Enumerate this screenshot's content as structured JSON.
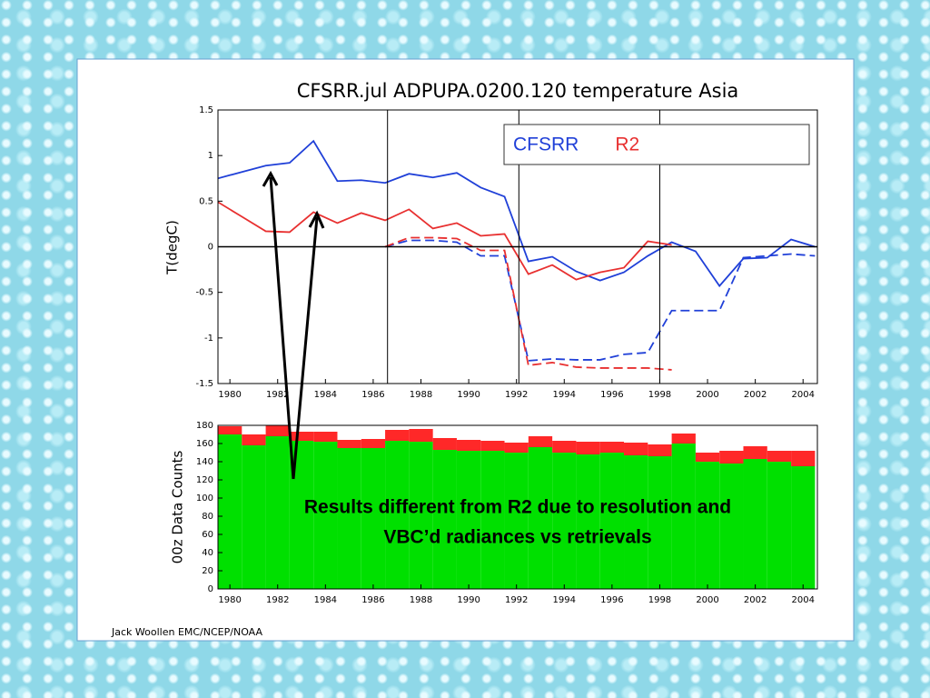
{
  "chart_data": [
    {
      "type": "line",
      "title": "CFSRR.jul ADPUPA.0200.120 temperature Asia",
      "ylabel": "T(degC)",
      "x": [
        1979.5,
        1980.5,
        1981.5,
        1982.5,
        1983.5,
        1984.5,
        1985.5,
        1986.5,
        1987.5,
        1988.5,
        1989.5,
        1990.5,
        1991.5,
        1992.5,
        1993.5,
        1994.5,
        1995.5,
        1996.5,
        1997.5,
        1998.5,
        1999.5,
        2000.5,
        2001.5,
        2002.5,
        2003.5,
        2004.5
      ],
      "series": [
        {
          "name": "CFSRR",
          "color": "#2040d8",
          "dash": false,
          "values": [
            0.75,
            0.82,
            0.89,
            0.92,
            1.16,
            0.72,
            0.73,
            0.7,
            0.8,
            0.76,
            0.81,
            0.65,
            0.55,
            -0.16,
            -0.11,
            -0.27,
            -0.37,
            -0.28,
            -0.1,
            0.05,
            -0.05,
            -0.43,
            -0.13,
            -0.12,
            0.08,
            0.0
          ]
        },
        {
          "name": "R2",
          "color": "#e83030",
          "dash": false,
          "values": [
            0.49,
            0.33,
            0.17,
            0.16,
            0.38,
            0.26,
            0.37,
            0.29,
            0.41,
            0.2,
            0.26,
            0.12,
            0.14,
            -0.3,
            -0.2,
            -0.36,
            -0.28,
            -0.23,
            0.06,
            0.02,
            null,
            null,
            null,
            null,
            null,
            null
          ]
        },
        {
          "color": "#2040d8",
          "dash": true,
          "values": [
            null,
            null,
            null,
            null,
            null,
            null,
            null,
            0.0,
            0.07,
            0.07,
            0.05,
            -0.1,
            -0.1,
            -1.25,
            -1.23,
            -1.24,
            -1.24,
            -1.18,
            -1.16,
            -0.7,
            -0.7,
            -0.7,
            -0.12,
            -0.1,
            -0.08,
            -0.1
          ]
        },
        {
          "color": "#e83030",
          "dash": true,
          "values": [
            null,
            null,
            null,
            null,
            null,
            null,
            null,
            0.0,
            0.1,
            0.1,
            0.09,
            -0.04,
            -0.04,
            -1.3,
            -1.27,
            -1.32,
            -1.33,
            -1.33,
            -1.33,
            -1.35,
            null,
            null,
            null,
            null,
            null,
            null
          ]
        }
      ],
      "vlines": [
        1986.6,
        1992.1,
        1998.0
      ],
      "xlim": [
        1979.5,
        2004.6
      ],
      "xticks": [
        1980,
        1982,
        1984,
        1986,
        1988,
        1990,
        1992,
        1994,
        1996,
        1998,
        2000,
        2002,
        2004
      ],
      "ylim": [
        -1.5,
        1.5
      ],
      "yticks": [
        1.5,
        1,
        0.5,
        0,
        -0.5,
        -1,
        -1.5
      ],
      "legend": "top-right"
    },
    {
      "type": "bar",
      "stacked": true,
      "ylabel": "00z Data Counts",
      "x": [
        1980,
        1981,
        1982,
        1983,
        1984,
        1985,
        1986,
        1987,
        1988,
        1989,
        1990,
        1991,
        1992,
        1993,
        1994,
        1995,
        1996,
        1997,
        1998,
        1999,
        2000,
        2001,
        2002,
        2003,
        2004
      ],
      "series": [
        {
          "color": "#00e000",
          "values": [
            170,
            158,
            168,
            163,
            162,
            155,
            155,
            163,
            162,
            153,
            152,
            152,
            150,
            156,
            150,
            148,
            150,
            147,
            146,
            160,
            140,
            138,
            143,
            140,
            135
          ]
        },
        {
          "color": "#ff2828",
          "values": [
            9,
            12,
            12,
            10,
            11,
            9,
            10,
            12,
            14,
            13,
            12,
            11,
            11,
            12,
            13,
            14,
            12,
            14,
            13,
            11,
            10,
            14,
            14,
            12,
            17
          ]
        }
      ],
      "xlim": [
        1979.5,
        2004.6
      ],
      "xticks": [
        1980,
        1982,
        1984,
        1986,
        1988,
        1990,
        1992,
        1994,
        1996,
        1998,
        2000,
        2002,
        2004
      ],
      "ylim": [
        0,
        180
      ],
      "yticks": [
        0,
        20,
        40,
        60,
        80,
        100,
        120,
        140,
        160,
        180
      ]
    }
  ],
  "annotation": [
    "Results different from R2 due to resolution and",
    "VBC’d radiances vs retrievals"
  ],
  "footer": "Jack Woollen EMC/NCEP/NOAA"
}
